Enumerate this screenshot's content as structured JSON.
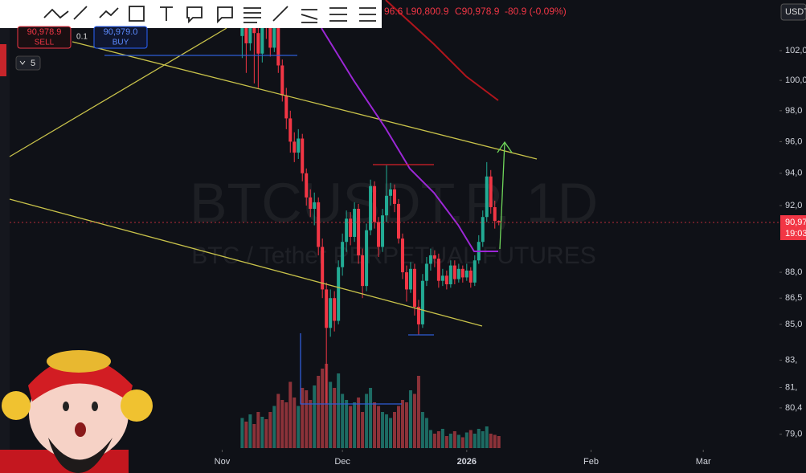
{
  "header": {
    "high": "96.6",
    "low": "L90,800.9",
    "close": "C90,978.9",
    "change": "-80.9 (-0.09%)"
  },
  "order_panel": {
    "sell_price": "90,978.9",
    "sell_label": "SELL",
    "quantity": "0.1",
    "buy_price": "90,979.0",
    "buy_label": "BUY"
  },
  "interval_badge": "5",
  "currency": "USDT",
  "chart_data": {
    "type": "candlestick",
    "watermark_symbol": "BTCUSDT.P, 1D",
    "watermark_name": "BTC / Tether PERPETUAL FUTURES",
    "last_price_label": "90,97",
    "countdown": "19:03",
    "log": true,
    "up_color": "#22ab94",
    "down_color": "#f23645",
    "up_volume_color": "#1d6b63",
    "down_volume_color": "#8c3239",
    "open": [
      103000,
      103800,
      102500,
      104000,
      103200,
      101800,
      104300,
      103600,
      102200,
      103900,
      101000,
      99000,
      97500,
      96000,
      95300,
      96200,
      94000,
      92500,
      91800,
      92200,
      89500,
      87000,
      84800,
      86500,
      85200,
      88300,
      89800,
      91200,
      90100,
      91800,
      89000,
      87200,
      90500,
      93200,
      91000,
      89500,
      91400,
      92600,
      93000,
      92100,
      90000,
      88000,
      87000,
      88200,
      86000,
      85000,
      87500,
      88500,
      89000,
      88800,
      87500,
      87800,
      87300,
      88400,
      87600,
      88200,
      87700,
      88100,
      87400,
      88700,
      89800,
      91300,
      93800,
      91900,
      91059.8
    ],
    "high": [
      104600,
      104300,
      105000,
      104500,
      103700,
      104800,
      104900,
      104000,
      104400,
      104200,
      101400,
      99500,
      98000,
      96600,
      96800,
      96500,
      94300,
      93000,
      92800,
      92500,
      90000,
      87400,
      87000,
      86900,
      88700,
      90300,
      91700,
      91600,
      92200,
      92100,
      89400,
      90900,
      93600,
      93500,
      91300,
      91800,
      94500,
      93400,
      93300,
      92400,
      90300,
      88400,
      88600,
      88500,
      86400,
      87900,
      88900,
      89400,
      89300,
      89100,
      88200,
      88100,
      88700,
      88700,
      88500,
      88400,
      88500,
      88300,
      89000,
      90200,
      91700,
      94700,
      94200,
      92300,
      91096.6
    ],
    "low": [
      101500,
      100500,
      102000,
      99800,
      99500,
      101200,
      102800,
      101600,
      101900,
      100500,
      98600,
      96800,
      95300,
      94700,
      94900,
      93500,
      92000,
      91300,
      90800,
      89000,
      86500,
      80600,
      84300,
      84600,
      85000,
      87800,
      89200,
      89600,
      89800,
      88500,
      86500,
      86900,
      90200,
      90600,
      88900,
      89200,
      91000,
      92000,
      91600,
      89700,
      87600,
      86300,
      86800,
      85500,
      84400,
      84800,
      87200,
      88100,
      88300,
      87100,
      87200,
      87000,
      87100,
      87300,
      87400,
      87400,
      87500,
      87100,
      87200,
      88500,
      89500,
      91000,
      91500,
      90600,
      90800.9
    ],
    "close": [
      103800,
      102500,
      104000,
      103200,
      101800,
      104300,
      103600,
      102200,
      103900,
      101000,
      99000,
      97500,
      96000,
      95300,
      96200,
      94000,
      92500,
      91800,
      92200,
      89500,
      87000,
      84800,
      86500,
      85200,
      88300,
      89800,
      91200,
      90100,
      91800,
      89000,
      87200,
      90500,
      93200,
      91000,
      89500,
      91400,
      92600,
      93000,
      92100,
      90000,
      88000,
      87000,
      88200,
      86000,
      85000,
      87500,
      88500,
      89000,
      88800,
      87500,
      87800,
      87300,
      88400,
      87600,
      88200,
      87700,
      88100,
      87400,
      88700,
      89800,
      91300,
      93800,
      91900,
      91059.8,
      90978.9
    ],
    "volume": [
      25,
      22,
      28,
      20,
      30,
      26,
      24,
      30,
      35,
      45,
      40,
      38,
      55,
      42,
      35,
      50,
      48,
      40,
      52,
      60,
      66,
      70,
      55,
      50,
      62,
      45,
      40,
      35,
      38,
      42,
      30,
      45,
      50,
      38,
      35,
      30,
      28,
      25,
      30,
      35,
      40,
      38,
      48,
      45,
      60,
      30,
      25,
      15,
      12,
      14,
      16,
      10,
      12,
      14,
      11,
      9,
      13,
      15,
      12,
      16,
      14,
      18,
      12,
      11,
      10
    ],
    "xlim": [
      -58,
      134
    ],
    "xticks": [
      {
        "value": -5,
        "label": "Nov"
      },
      {
        "value": 25,
        "label": "Dec"
      },
      {
        "value": 56,
        "label": "2026"
      },
      {
        "value": 87,
        "label": "Feb"
      },
      {
        "value": 115,
        "label": "Mar"
      }
    ],
    "ylim": [
      78400,
      105500
    ],
    "yticks": [
      {
        "value": 102000,
        "label": "102,0"
      },
      {
        "value": 100000,
        "label": "100,0"
      },
      {
        "value": 98000,
        "label": "98,0"
      },
      {
        "value": 96000,
        "label": "96,0"
      },
      {
        "value": 94000,
        "label": "94,0"
      },
      {
        "value": 92000,
        "label": "92,0"
      },
      {
        "value": 88000,
        "label": "88,0"
      },
      {
        "value": 86500,
        "label": "86,5"
      },
      {
        "value": 85000,
        "label": "85,0"
      },
      {
        "value": 83000,
        "label": "83,"
      },
      {
        "value": 81500,
        "label": "81,"
      },
      {
        "value": 80400,
        "label": "80,4"
      },
      {
        "value": 79000,
        "label": "79,0"
      }
    ],
    "y2lim": [
      0,
      100
    ]
  }
}
